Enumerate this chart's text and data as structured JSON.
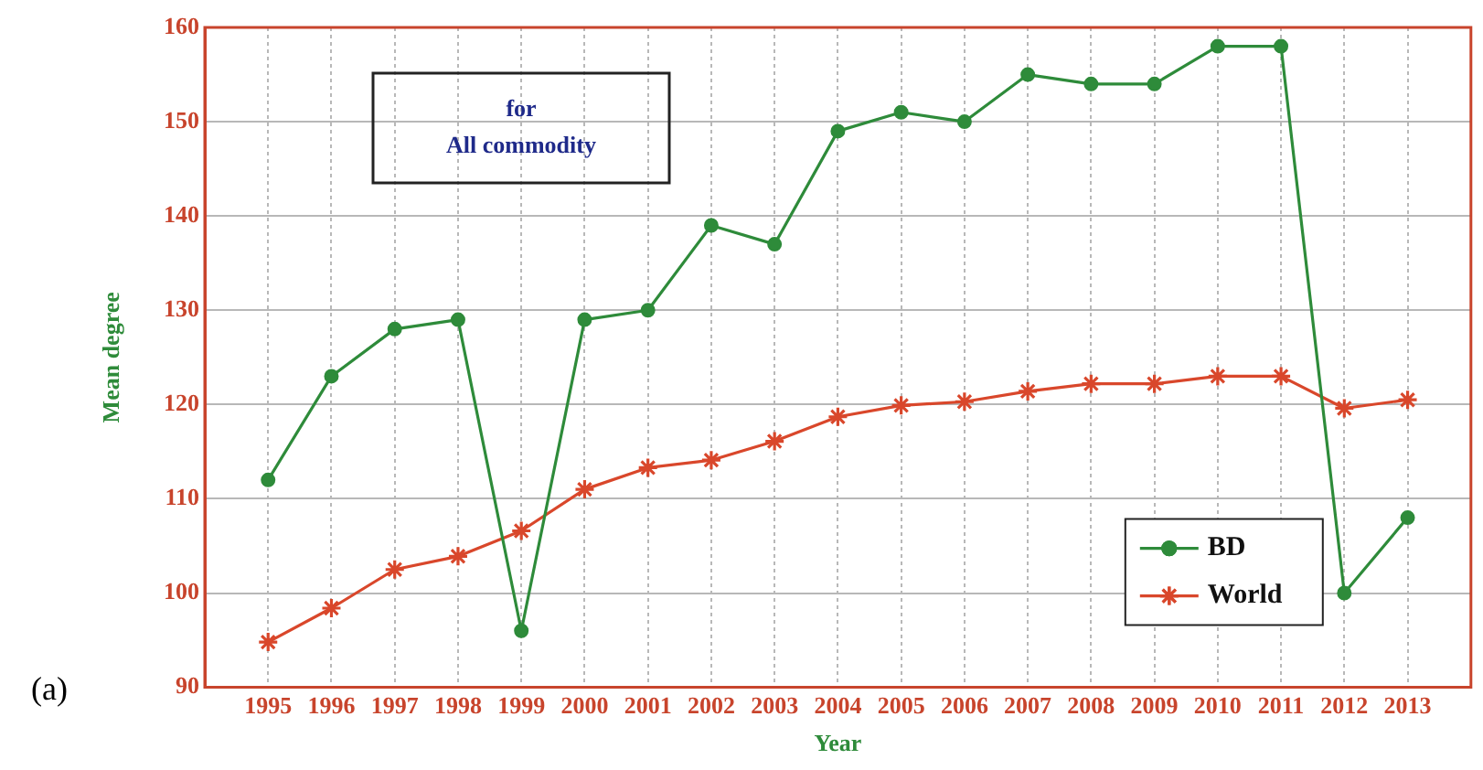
{
  "chart_data": {
    "type": "line",
    "xlabel": "Year",
    "ylabel": "Mean degree",
    "x": [
      1995,
      1996,
      1997,
      1998,
      1999,
      2000,
      2001,
      2002,
      2003,
      2004,
      2005,
      2006,
      2007,
      2008,
      2009,
      2010,
      2011,
      2012,
      2013
    ],
    "xlim": [
      1994,
      2014
    ],
    "xticks": [
      1995,
      1996,
      1997,
      1998,
      1999,
      2000,
      2001,
      2002,
      2003,
      2004,
      2005,
      2006,
      2007,
      2008,
      2009,
      2010,
      2011,
      2012,
      2013
    ],
    "ylim": [
      90,
      160
    ],
    "yticks": [
      90,
      100,
      110,
      120,
      130,
      140,
      150,
      160
    ],
    "series": [
      {
        "name": "BD",
        "color": "#2e8b3a",
        "marker": "circle",
        "values": [
          112,
          123,
          128,
          129,
          96,
          129,
          130,
          139,
          137,
          149,
          151,
          150,
          155,
          154,
          154,
          158,
          158,
          100,
          108
        ]
      },
      {
        "name": "World",
        "color": "#d9472b",
        "marker": "cross",
        "values": [
          94.8,
          98.4,
          102.5,
          103.9,
          106.6,
          111,
          113.3,
          114.1,
          116.1,
          118.7,
          119.9,
          120.3,
          121.4,
          122.2,
          122.2,
          123,
          123,
          119.6,
          120.5
        ]
      }
    ],
    "annotations": [
      "for",
      "All commodity",
      "(a)"
    ],
    "grid": true,
    "legend": "bottom right",
    "line_style": "solid"
  }
}
